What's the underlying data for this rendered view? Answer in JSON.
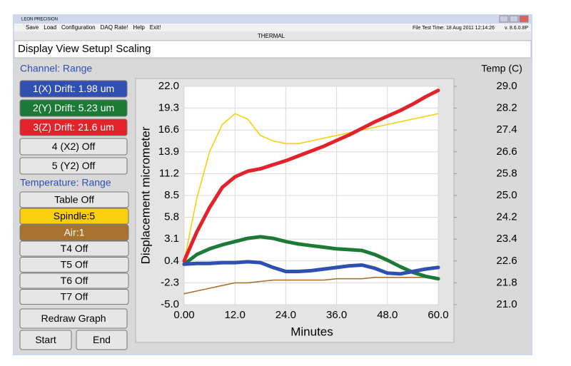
{
  "window": {
    "title": "LEON PRECISION"
  },
  "menu": [
    "Save",
    "Load",
    "Configuration",
    "DAQ Rate!",
    "Help",
    "Exit!"
  ],
  "status": "File Test Time: 18 Aug 2011 12:14:26",
  "version": "v. 8.6.0.8P",
  "mode": "THERMAL",
  "toolbar": "Display View Setup! Scaling",
  "channel_heading": "Channel:  Range",
  "channel_off": [
    "4 (X2) Off",
    "5 (Y2) Off"
  ],
  "temperature_heading": "Temperature: Range",
  "table_button": "Table Off",
  "temperature_off": [
    "T4 Off",
    "T5 Off",
    "T6 Off",
    "T7 Off"
  ],
  "buttons": [
    "Redraw Graph",
    "Start",
    "End"
  ],
  "chart_data": {
    "type": "line",
    "xlabel": "Minutes",
    "ylabel": "Displacement micrometer",
    "y2label": "Temp (C)",
    "x": [
      0,
      3,
      6,
      9,
      12,
      15,
      18,
      21,
      24,
      27,
      30,
      33,
      36,
      39,
      42,
      45,
      48,
      51,
      54,
      57,
      60
    ],
    "xlim": [
      0,
      60
    ],
    "ylim": [
      -5,
      22
    ],
    "y2lim": [
      21,
      29
    ],
    "grid": true,
    "xticks": [
      {
        "value": 0,
        "label": "0.00"
      },
      {
        "value": 12,
        "label": "12.0"
      },
      {
        "value": 24,
        "label": "24.0"
      },
      {
        "value": 36,
        "label": "36.0"
      },
      {
        "value": 48,
        "label": "48.0"
      },
      {
        "value": 60,
        "label": "60.0"
      }
    ],
    "yticks": [
      {
        "value": 22,
        "label": "22.0"
      },
      {
        "value": 19.3,
        "label": "19.3"
      },
      {
        "value": 16.6,
        "label": "16.6"
      },
      {
        "value": 13.9,
        "label": "13.9"
      },
      {
        "value": 11.2,
        "label": "11.2"
      },
      {
        "value": 8.5,
        "label": "8.5"
      },
      {
        "value": 5.8,
        "label": "5.8"
      },
      {
        "value": 3.1,
        "label": "3.1"
      },
      {
        "value": 0.4,
        "label": "0.4"
      },
      {
        "value": -2.3,
        "label": "-2.3"
      },
      {
        "value": -5,
        "label": "-5.0"
      }
    ],
    "y2ticks": [
      {
        "value": 29,
        "label": "29.0"
      },
      {
        "value": 28.2,
        "label": "28.2"
      },
      {
        "value": 27.4,
        "label": "27.4"
      },
      {
        "value": 26.6,
        "label": "26.6"
      },
      {
        "value": 25.8,
        "label": "25.8"
      },
      {
        "value": 25,
        "label": "25.0"
      },
      {
        "value": 24.2,
        "label": "24.2"
      },
      {
        "value": 23.4,
        "label": "23.4"
      },
      {
        "value": 22.6,
        "label": "22.6"
      },
      {
        "value": 21.8,
        "label": "21.8"
      },
      {
        "value": 21,
        "label": "21.0"
      }
    ],
    "series": [
      {
        "name": "1(X) Drift: 1.98 um",
        "color": "#2f4fb3",
        "values": [
          0,
          0.1,
          0.1,
          0.2,
          0.2,
          0.3,
          0.2,
          -0.4,
          -0.9,
          -0.9,
          -0.8,
          -0.6,
          -0.4,
          -0.2,
          -0.1,
          -0.5,
          -1.1,
          -1.2,
          -0.9,
          -0.6,
          -0.4
        ]
      },
      {
        "name": "2(Y) Drift: 5.23 um",
        "color": "#1d7a36",
        "values": [
          0,
          1.2,
          1.9,
          2.4,
          2.8,
          3.2,
          3.4,
          3.2,
          2.8,
          2.5,
          2.3,
          2.1,
          1.9,
          1.8,
          1.7,
          1.2,
          0.5,
          -0.3,
          -1,
          -1.5,
          -1.8
        ]
      },
      {
        "name": "3(Z) Drift: 21.6 um",
        "color": "#e3232b",
        "values": [
          0.4,
          4,
          7,
          9.5,
          10.8,
          11.5,
          11.8,
          12.3,
          12.8,
          13.4,
          14,
          14.6,
          15.3,
          16,
          16.8,
          17.6,
          18.3,
          19,
          19.8,
          20.7,
          21.5
        ]
      },
      {
        "name": "Spindle:5",
        "color": "#fbcf0f",
        "axis": "y2",
        "values": [
          22.6,
          24.9,
          26.6,
          27.6,
          28,
          27.8,
          27.2,
          27,
          26.9,
          26.9,
          27,
          27.1,
          27.2,
          27.3,
          27.4,
          27.5,
          27.6,
          27.7,
          27.8,
          27.9,
          28
        ]
      },
      {
        "name": "Air:1",
        "color": "#a8722f",
        "axis": "y2",
        "values": [
          21.4,
          21.5,
          21.6,
          21.7,
          21.8,
          21.8,
          21.85,
          21.9,
          21.9,
          21.9,
          21.9,
          21.9,
          21.95,
          21.95,
          21.95,
          22,
          22,
          22,
          22,
          22,
          22
        ]
      }
    ]
  }
}
